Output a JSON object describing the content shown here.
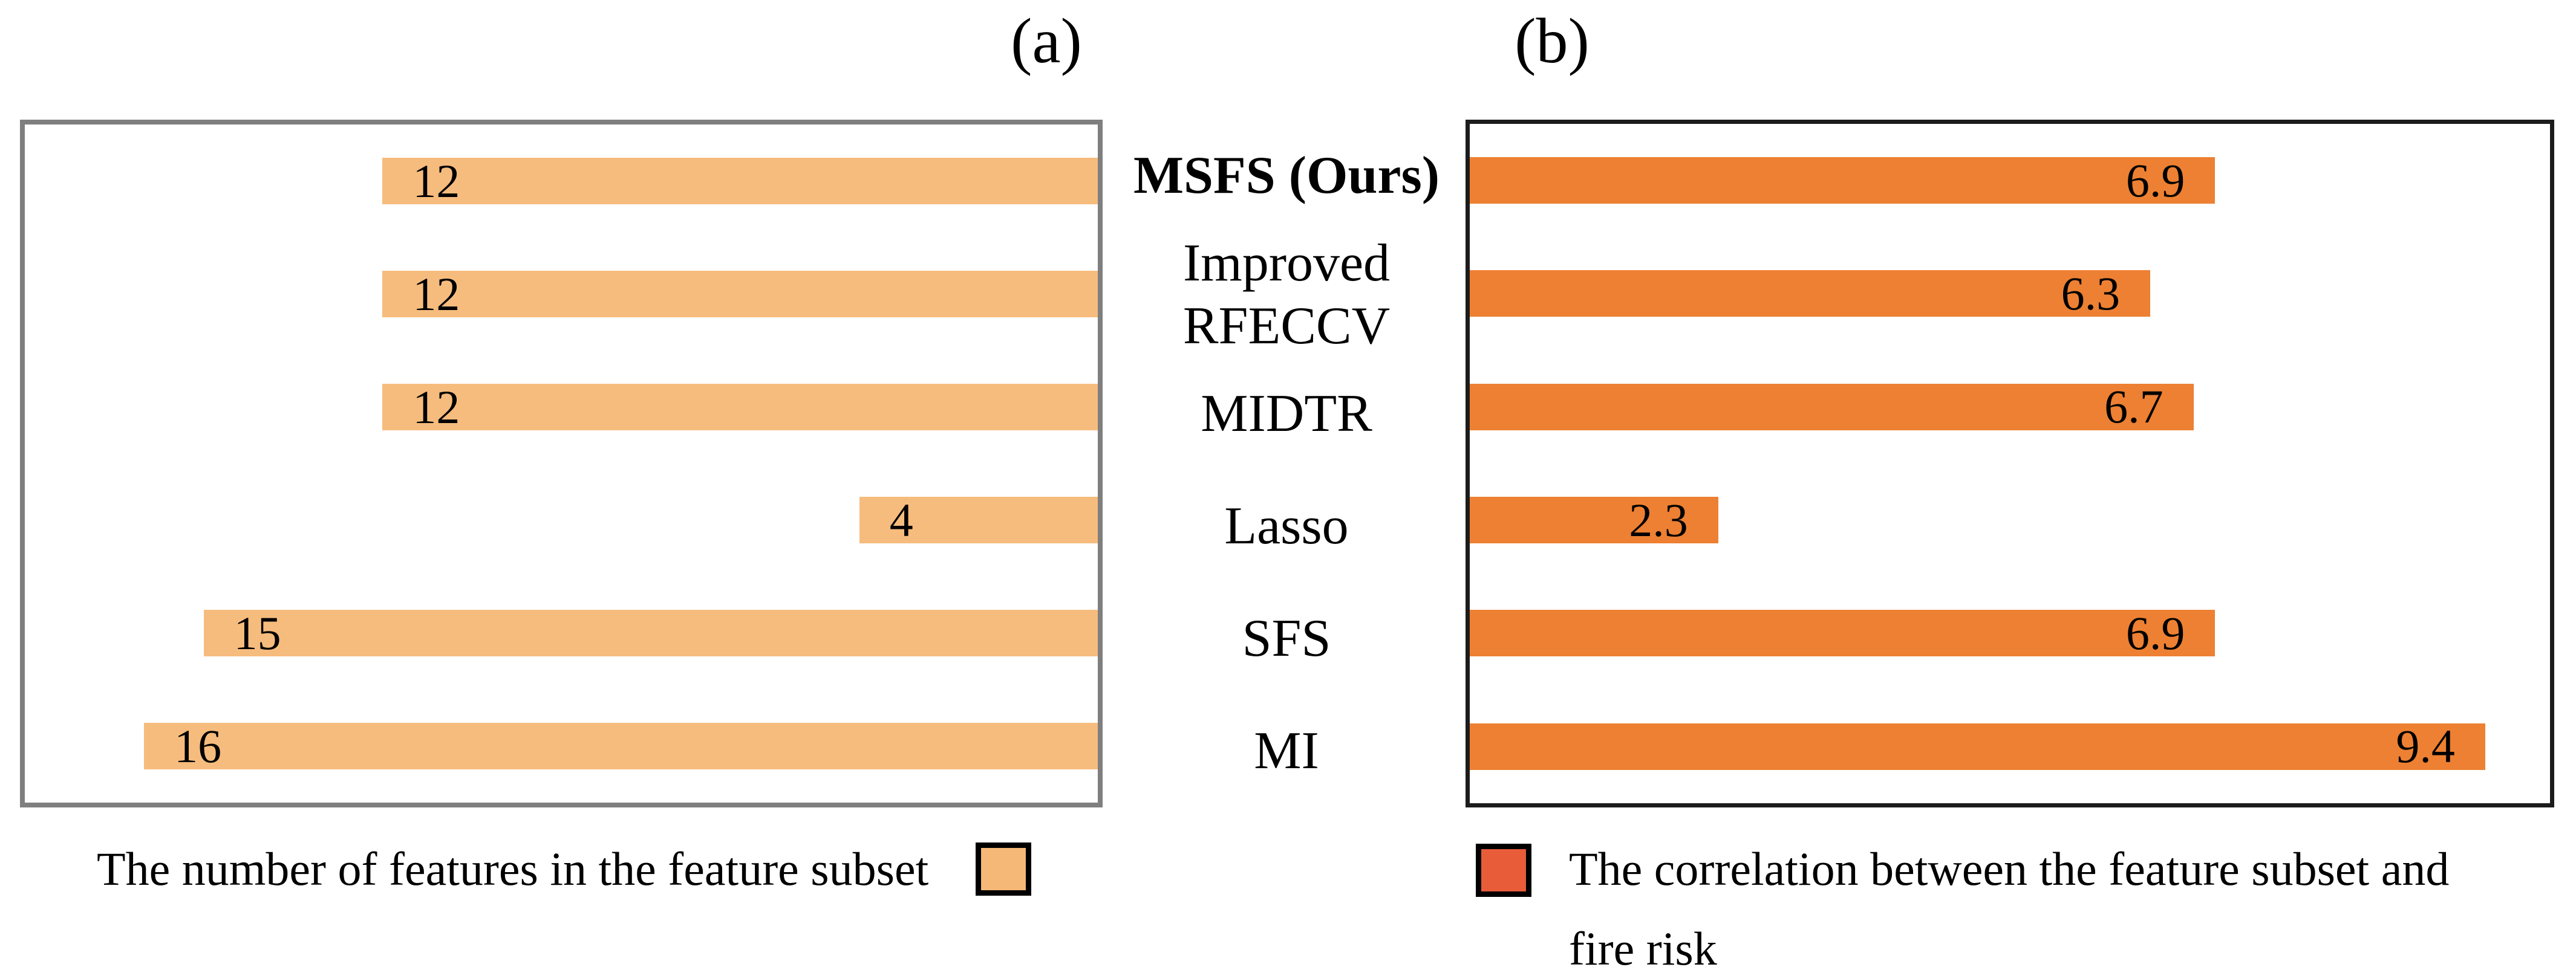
{
  "titles": {
    "a": "(a)",
    "b": "(b)"
  },
  "category_labels": [
    "MSFS (Ours)",
    "Improved\nRFECCV",
    "MIDTR",
    "Lasso",
    "SFS",
    "MI"
  ],
  "legend": {
    "left": {
      "text": "The number of features in the feature subset",
      "swatch": "light-orange-square"
    },
    "right": {
      "text": "The correlation between the feature subset and\nfire risk",
      "swatch": "red-orange-square"
    }
  },
  "colors": {
    "left_bar": "#F6BC7D",
    "right_bar": "#ED8032",
    "left_swatch": "#F6B876",
    "right_swatch": "#E85C3A",
    "panel_a_border": "#7F7F7F",
    "panel_b_border": "#1C1C1C"
  },
  "chart_data": [
    {
      "type": "bar",
      "orientation": "horizontal",
      "direction": "right-to-left",
      "title": "(a)",
      "categories": [
        "MSFS (Ours)",
        "Improved RFECCV",
        "MIDTR",
        "Lasso",
        "SFS",
        "MI"
      ],
      "values": [
        12,
        12,
        12,
        4,
        15,
        16
      ],
      "xlim": [
        0,
        18
      ],
      "grid": false,
      "bar_color": "#F6BC7D",
      "data_labels": "inside-left-end",
      "legend_entry": "The number of features in the feature subset",
      "legend_position": "below-chart"
    },
    {
      "type": "bar",
      "orientation": "horizontal",
      "direction": "left-to-right",
      "title": "(b)",
      "categories": [
        "MSFS (Ours)",
        "Improved RFECCV",
        "MIDTR",
        "Lasso",
        "SFS",
        "MI"
      ],
      "values": [
        6.9,
        6.3,
        6.7,
        2.3,
        6.9,
        9.4
      ],
      "xlim": [
        0,
        10
      ],
      "grid": false,
      "bar_color": "#ED8032",
      "data_labels": "inside-right-end",
      "legend_entry": "The correlation between the feature subset and fire risk",
      "legend_position": "below-chart"
    }
  ]
}
